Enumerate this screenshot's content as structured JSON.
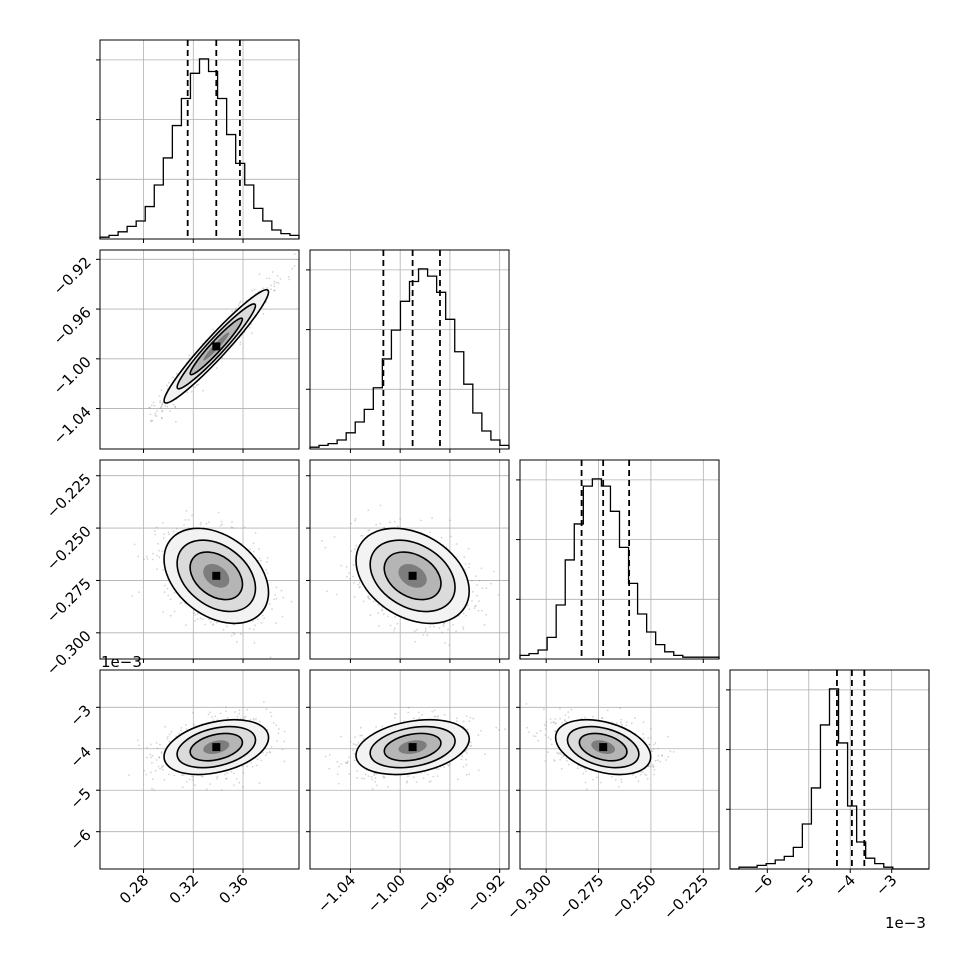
{
  "chart_data": {
    "type": "corner",
    "grid": true,
    "parameters": [
      {
        "range": [
          0.245,
          0.405
        ],
        "ticks": [
          0.28,
          0.32,
          0.36
        ],
        "tick_labels": [
          "0.28",
          "0.32",
          "0.36"
        ],
        "quantiles": [
          0.3155,
          0.3385,
          0.3575
        ]
      },
      {
        "range": [
          -1.0725,
          -0.9125
        ],
        "ticks": [
          -1.04,
          -1.0,
          -0.96,
          -0.92
        ],
        "tick_labels": [
          "−1.04",
          "−1.00",
          "−0.96",
          "−0.92"
        ],
        "quantiles": [
          -1.0135,
          -0.99,
          -0.968
        ]
      },
      {
        "range": [
          -0.3125,
          -0.2175
        ],
        "ticks": [
          -0.3,
          -0.275,
          -0.25,
          -0.225
        ],
        "tick_labels": [
          "−0.300",
          "−0.275",
          "−0.250",
          "−0.225"
        ],
        "quantiles": [
          -0.2831,
          -0.2728,
          -0.2604
        ]
      },
      {
        "range": [
          -6.9,
          -2.1
        ],
        "ticks": [
          -6,
          -5,
          -4,
          -3
        ],
        "tick_labels": [
          "−6",
          "−5",
          "−4",
          "−3"
        ],
        "quantiles": [
          -4.32,
          -3.96,
          -3.66
        ],
        "scale_label": "1e−3"
      }
    ],
    "histograms": [
      [
        0.01,
        0.02,
        0.04,
        0.07,
        0.1,
        0.18,
        0.3,
        0.45,
        0.63,
        0.78,
        0.92,
        1.0,
        0.93,
        0.78,
        0.58,
        0.42,
        0.3,
        0.17,
        0.1,
        0.05,
        0.03,
        0.02
      ],
      [
        0.01,
        0.02,
        0.03,
        0.05,
        0.09,
        0.15,
        0.22,
        0.34,
        0.5,
        0.66,
        0.82,
        0.93,
        1.0,
        0.96,
        0.87,
        0.72,
        0.54,
        0.36,
        0.2,
        0.1,
        0.05,
        0.02
      ],
      [
        0.02,
        0.03,
        0.05,
        0.12,
        0.3,
        0.55,
        0.75,
        0.96,
        1.0,
        0.96,
        0.82,
        0.62,
        0.42,
        0.25,
        0.15,
        0.08,
        0.04,
        0.02,
        0.01,
        0.01,
        0.01,
        0.01
      ],
      [
        0.0,
        0.01,
        0.01,
        0.02,
        0.03,
        0.05,
        0.07,
        0.12,
        0.25,
        0.45,
        0.8,
        1.0,
        0.7,
        0.35,
        0.15,
        0.06,
        0.03,
        0.01,
        0.0,
        0.0,
        0.0,
        0.0
      ]
    ],
    "correlations": {
      "1_0": 0.96,
      "2_0": -0.35,
      "2_1": -0.32,
      "3_0": 0.35,
      "3_1": 0.3,
      "3_2": -0.35
    }
  }
}
